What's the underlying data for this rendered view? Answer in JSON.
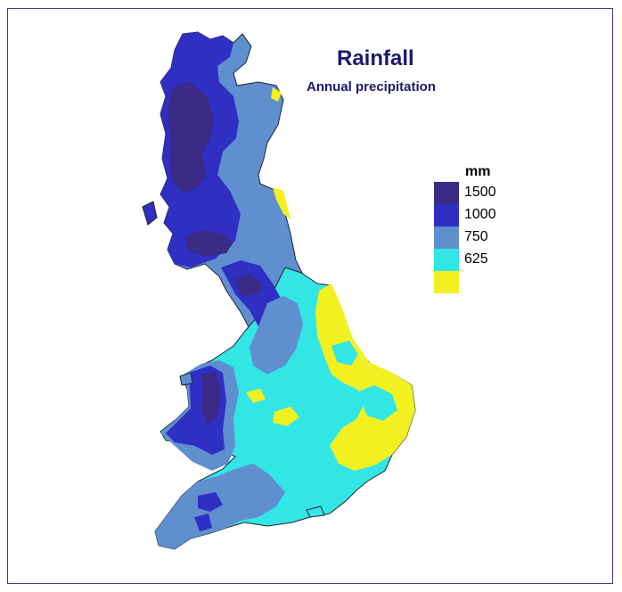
{
  "title": "Rainfall",
  "subtitle": "Annual precipitation",
  "legend": {
    "unit": "mm",
    "items": [
      {
        "label": "1500",
        "color": "#3b2a86"
      },
      {
        "label": "1000",
        "color": "#2f2fc4"
      },
      {
        "label": "750",
        "color": "#5f8fcf"
      },
      {
        "label": "625",
        "color": "#33e6e6"
      },
      {
        "label": "",
        "color": "#f2f020"
      }
    ],
    "last_label": "625"
  },
  "colors": {
    "very_wet": "#3b2a86",
    "wet": "#2f2fc4",
    "moderate": "#5f8fcf",
    "dry": "#33e6e6",
    "very_dry": "#f2f020",
    "frame": "#3a3aa0",
    "text": "#1a1a6e"
  }
}
